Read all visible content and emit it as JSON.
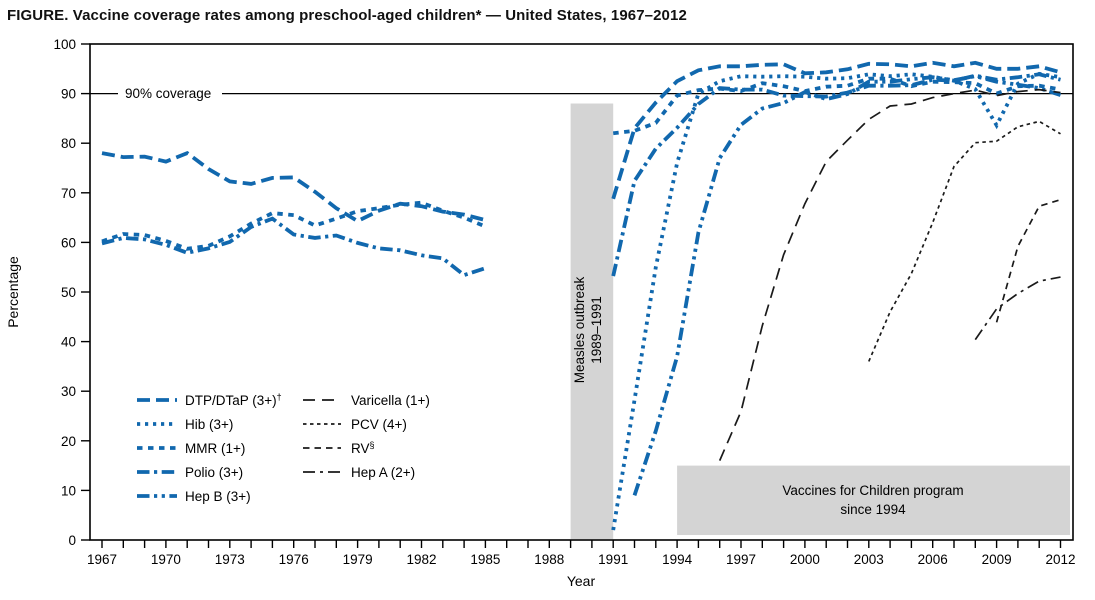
{
  "title": "FIGURE. Vaccine coverage rates among preschool-aged children* — United States, 1967–2012",
  "colors": {
    "series_blue": "#1168ae",
    "series_black": "#1a1a1a",
    "band_gray": "#d4d4d4",
    "axis_black": "#000000"
  },
  "chart_data": {
    "type": "line",
    "title": "FIGURE. Vaccine coverage rates among preschool-aged children* — United States, 1967–2012",
    "xlabel": "Year",
    "ylabel": "Percentage",
    "xlim": [
      1966,
      2013
    ],
    "ylim": [
      0,
      100
    ],
    "yticks": [
      0,
      10,
      20,
      30,
      40,
      50,
      60,
      70,
      80,
      90,
      100
    ],
    "xtick_years_minor_every": 1,
    "xticks_labeled": [
      1967,
      1970,
      1973,
      1976,
      1979,
      1982,
      1985,
      1988,
      1991,
      1994,
      1997,
      2000,
      2003,
      2006,
      2009,
      2012
    ],
    "grid": "off",
    "legend_position": "inside-lower-left",
    "reference_line": {
      "value": 90,
      "label": "90% coverage"
    },
    "annotations": {
      "measles_band": {
        "x_start": 1989,
        "x_end": 1991,
        "y_top": 88,
        "y_bottom": 0,
        "line1": "Measles outbreak",
        "line2": "1989–1991"
      },
      "vfc_box": {
        "x_start": 1994,
        "x_end": 2012.6,
        "y_top": 15,
        "y_bottom": 1,
        "line1": "Vaccines for Children program",
        "line2": "since 1994"
      }
    },
    "series": [
      {
        "id": "dtp",
        "name": "DTP/DTaP (3+)",
        "sup": "†",
        "color": "blue",
        "pattern": "long-dash-thick",
        "legend_col": 1,
        "legend_row": 0,
        "segments": [
          {
            "start_year": 1967,
            "values": [
              78,
              77.2,
              77.3,
              76.3,
              78,
              74.8,
              72.3,
              71.8,
              73,
              73.1,
              70.2,
              66.9,
              64.3,
              66.4,
              67.8,
              67.3,
              66.2,
              65.6,
              64.5
            ]
          },
          {
            "start_year": 1991,
            "values": [
              68.8,
              83,
              88.2,
              92.5,
              94.7,
              95.5,
              95.5,
              95.8,
              95.9,
              94.1,
              94.3,
              94.9,
              96,
              95.9,
              95.5,
              96.2,
              95.5,
              96.2,
              95,
              95,
              95.5,
              94.3
            ]
          }
        ]
      },
      {
        "id": "hib",
        "name": "Hib (3+)",
        "sup": "",
        "color": "blue",
        "pattern": "dot-thick",
        "legend_col": 1,
        "legend_row": 1,
        "segments": [
          {
            "start_year": 1991,
            "values": [
              2,
              28.2,
              55,
              76,
              90,
              92.5,
              93.5,
              93.4,
              93.5,
              93.4,
              93,
              93.1,
              93.9,
              93.5,
              93.9,
              93.4,
              92.6,
              90.9,
              83.6,
              92,
              94,
              93.3
            ]
          }
        ]
      },
      {
        "id": "mmr",
        "name": "MMR (1+)",
        "sup": "",
        "color": "blue",
        "pattern": "short-dash-thick",
        "legend_col": 1,
        "legend_row": 2,
        "segments": [
          {
            "start_year": 1967,
            "values": [
              60.2,
              61.7,
              61.5,
              60.3,
              58.7,
              59.3,
              61.2,
              63.8,
              65.9,
              65.5,
              63.4,
              64.8,
              66.3,
              66.9,
              67.6,
              68,
              66.4,
              65,
              63.2
            ]
          },
          {
            "start_year": 1991,
            "values": [
              82,
              82.5,
              84.1,
              89.6,
              90.7,
              91,
              90.5,
              92.1,
              91.5,
              90.5,
              91.4,
              91.6,
              93,
              93,
              91.5,
              92.4,
              92.3,
              92.1,
              90,
              91.5,
              91.6,
              90.8
            ]
          }
        ]
      },
      {
        "id": "polio",
        "name": "Polio (3+)",
        "sup": "",
        "color": "blue",
        "pattern": "dash-dot-thick",
        "legend_col": 1,
        "legend_row": 3,
        "segments": [
          {
            "start_year": 1967,
            "values": [
              59.8,
              60.9,
              60.6,
              59.5,
              57.9,
              58.8,
              60.1,
              63.1,
              64.8,
              61.6,
              60.9,
              61.4,
              59.9,
              58.8,
              58.4,
              57.4,
              56.8,
              53.4,
              54.8
            ]
          },
          {
            "start_year": 1991,
            "values": [
              53.2,
              72.4,
              78.9,
              83.1,
              87.9,
              91.1,
              90.8,
              90.8,
              89.6,
              89.5,
              89.4,
              90.2,
              91.6,
              91.6,
              91.7,
              92.8,
              92.6,
              93.6,
              92.8,
              93.3,
              93.9,
              92.8
            ]
          }
        ]
      },
      {
        "id": "hepb",
        "name": "Hep B (3+)",
        "sup": "",
        "color": "blue",
        "pattern": "dash-dot-dot-thick",
        "legend_col": 1,
        "legend_row": 4,
        "segments": [
          {
            "start_year": 1992,
            "values": [
              9,
              22,
              37,
              62,
              77,
              83.7,
              87,
              88.1,
              90.3,
              88.9,
              89.9,
              92.4,
              92.4,
              92.9,
              93.3,
              92.7,
              93.5,
              92.4,
              91.8,
              91.1,
              89.7
            ]
          }
        ]
      },
      {
        "id": "varicella",
        "name": "Varicella (1+)",
        "sup": "",
        "color": "black",
        "pattern": "long-dash-thin",
        "legend_col": 2,
        "legend_row": 0,
        "segments": [
          {
            "start_year": 1996,
            "values": [
              16,
              25.9,
              43.2,
              57.5,
              67.8,
              76.3,
              80.6,
              84.8,
              87.5,
              87.9,
              89.2,
              90,
              90.7,
              89.6,
              90.4,
              90.8,
              90.2
            ]
          }
        ]
      },
      {
        "id": "pcv",
        "name": "PCV (4+)",
        "sup": "",
        "color": "black",
        "pattern": "dot-thin",
        "legend_col": 2,
        "legend_row": 1,
        "segments": [
          {
            "start_year": 2003,
            "values": [
              36,
              46,
              53.7,
              64,
              75.3,
              80.1,
              80.4,
              83.3,
              84.4,
              81.9
            ]
          }
        ]
      },
      {
        "id": "rv",
        "name": "RV",
        "sup": "§",
        "color": "black",
        "pattern": "med-dash-thin",
        "legend_col": 2,
        "legend_row": 2,
        "segments": [
          {
            "start_year": 2009,
            "values": [
              43.9,
              59.2,
              67.3,
              68.6
            ]
          }
        ]
      },
      {
        "id": "hepa",
        "name": "Hep A (2+)",
        "sup": "",
        "color": "black",
        "pattern": "dash-dot-thin",
        "legend_col": 2,
        "legend_row": 3,
        "segments": [
          {
            "start_year": 2008,
            "values": [
              40.4,
              46.6,
              49.7,
              52.2,
              53
            ]
          }
        ]
      }
    ]
  }
}
